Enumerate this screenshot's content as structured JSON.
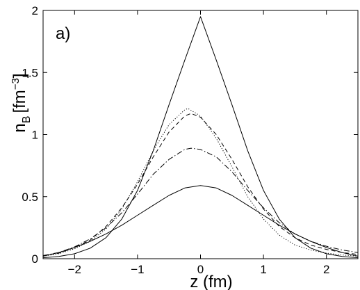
{
  "chart_data": {
    "type": "line",
    "panel_label": "a)",
    "xlabel": "z (fm)",
    "ylabel_main": "n",
    "ylabel_sub": "B",
    "ylabel_unit_open": "[fm",
    "ylabel_unit_exp": "−3",
    "ylabel_unit_close": "]",
    "xlim": [
      -2.5,
      2.5
    ],
    "ylim": [
      0,
      2
    ],
    "xticks": [
      -2,
      -1,
      0,
      1,
      2
    ],
    "xtick_labels": [
      "−2",
      "−1",
      "0",
      "1",
      "2"
    ],
    "yticks": [
      0,
      0.5,
      1,
      1.5,
      2
    ],
    "ytick_labels": [
      "0",
      "0.5",
      "1",
      "1.5",
      "2"
    ],
    "grid": false,
    "legend": "none",
    "series": [
      {
        "style": "solid",
        "x": [
          -2.5,
          -2.25,
          -2.0,
          -1.75,
          -1.5,
          -1.25,
          -1.0,
          -0.75,
          -0.5,
          -0.25,
          0.0,
          0.25,
          0.5,
          0.75,
          1.0,
          1.25,
          1.5,
          1.75,
          2.0,
          2.25,
          2.5
        ],
        "y": [
          0.008,
          0.018,
          0.04,
          0.085,
          0.17,
          0.32,
          0.55,
          0.87,
          1.24,
          1.6,
          1.95,
          1.6,
          1.24,
          0.87,
          0.55,
          0.32,
          0.17,
          0.085,
          0.04,
          0.018,
          0.008
        ]
      },
      {
        "style": "dotted",
        "x": [
          -2.5,
          -2.25,
          -2.0,
          -1.75,
          -1.5,
          -1.25,
          -1.0,
          -0.75,
          -0.5,
          -0.25,
          -0.2,
          0.0,
          0.25,
          0.5,
          0.75,
          1.0,
          1.25,
          1.5,
          1.75,
          2.0,
          2.25,
          2.5
        ],
        "y": [
          0.02,
          0.04,
          0.08,
          0.14,
          0.24,
          0.4,
          0.62,
          0.87,
          1.08,
          1.2,
          1.21,
          1.15,
          0.97,
          0.74,
          0.5,
          0.32,
          0.19,
          0.11,
          0.07,
          0.045,
          0.03,
          0.02
        ]
      },
      {
        "style": "dashed",
        "x": [
          -2.5,
          -2.25,
          -2.0,
          -1.75,
          -1.5,
          -1.25,
          -1.0,
          -0.75,
          -0.5,
          -0.25,
          -0.15,
          0.0,
          0.25,
          0.5,
          0.75,
          1.0,
          1.25,
          1.5,
          1.75,
          2.0,
          2.25,
          2.5
        ],
        "y": [
          0.025,
          0.045,
          0.09,
          0.15,
          0.26,
          0.41,
          0.6,
          0.82,
          1.02,
          1.15,
          1.17,
          1.14,
          1.0,
          0.8,
          0.58,
          0.4,
          0.26,
          0.17,
          0.11,
          0.075,
          0.05,
          0.035
        ]
      },
      {
        "style": "dashdot",
        "x": [
          -2.5,
          -2.25,
          -2.0,
          -1.75,
          -1.5,
          -1.25,
          -1.0,
          -0.75,
          -0.5,
          -0.25,
          -0.15,
          0.0,
          0.25,
          0.5,
          0.75,
          1.0,
          1.25,
          1.5,
          1.75,
          2.0,
          2.25,
          2.5
        ],
        "y": [
          0.025,
          0.05,
          0.095,
          0.16,
          0.25,
          0.37,
          0.52,
          0.68,
          0.8,
          0.88,
          0.89,
          0.88,
          0.82,
          0.7,
          0.55,
          0.41,
          0.29,
          0.2,
          0.14,
          0.1,
          0.07,
          0.05
        ]
      },
      {
        "style": "solid",
        "x": [
          -2.5,
          -2.25,
          -2.0,
          -1.75,
          -1.5,
          -1.25,
          -1.0,
          -0.75,
          -0.5,
          -0.25,
          0.0,
          0.25,
          0.5,
          0.75,
          1.0,
          1.25,
          1.5,
          1.75,
          2.0,
          2.25,
          2.5
        ],
        "y": [
          0.02,
          0.05,
          0.09,
          0.14,
          0.2,
          0.27,
          0.35,
          0.43,
          0.51,
          0.57,
          0.59,
          0.57,
          0.51,
          0.43,
          0.35,
          0.27,
          0.2,
          0.14,
          0.09,
          0.05,
          0.02
        ]
      }
    ]
  }
}
